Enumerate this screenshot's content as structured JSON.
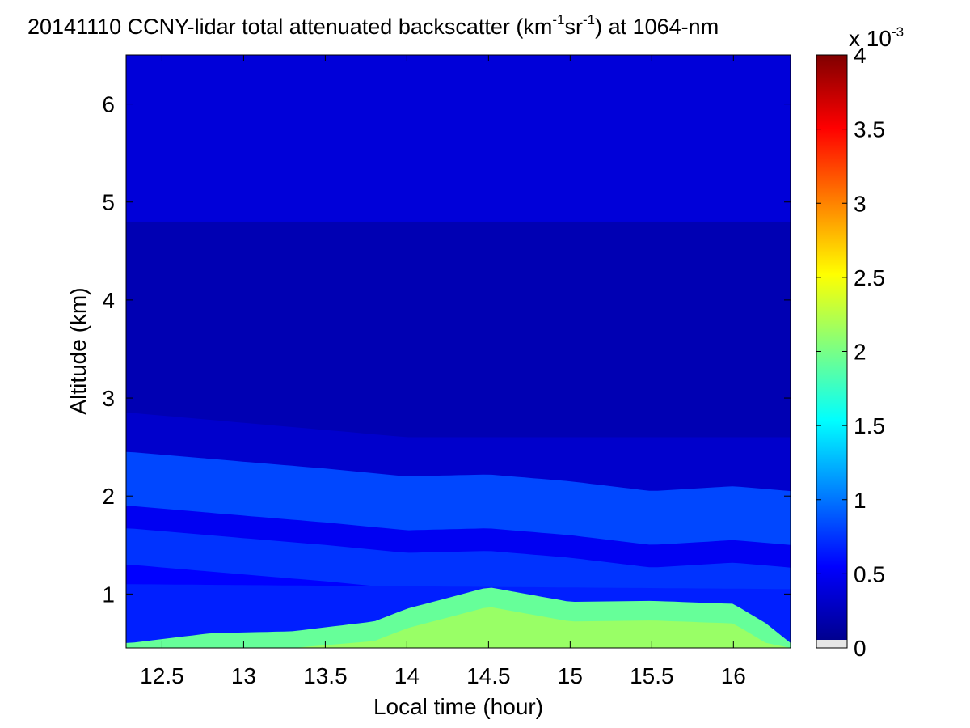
{
  "chart_data": {
    "type": "heatmap",
    "title": "20141110 CCNY-lidar total attenuated backscatter (km",
    "title_sup1": "-1",
    "title_mid": "sr",
    "title_sup2": "-1",
    "title_end": ") at 1064-nm",
    "xlabel": "Local time (hour)",
    "ylabel": "Altitude (km)",
    "xlim": [
      12.28,
      16.35
    ],
    "ylim": [
      0.45,
      6.5
    ],
    "x_ticks": [
      12.5,
      13,
      13.5,
      14,
      14.5,
      15,
      15.5,
      16
    ],
    "x_tick_labels": [
      "12.5",
      "13",
      "13.5",
      "14",
      "14.5",
      "15",
      "15.5",
      "16"
    ],
    "y_ticks": [
      1,
      2,
      3,
      4,
      5,
      6
    ],
    "y_tick_labels": [
      "1",
      "2",
      "3",
      "4",
      "5",
      "6"
    ],
    "colorbar": {
      "colormap": "jet",
      "clim": [
        0,
        4
      ],
      "ticks": [
        0,
        0.5,
        1,
        1.5,
        2,
        2.5,
        3,
        3.5,
        4
      ],
      "tick_labels": [
        "0",
        "0.5",
        "1",
        "1.5",
        "2",
        "2.5",
        "3",
        "3.5",
        "4"
      ],
      "multiplier_base": "x 10",
      "multiplier_exp": "-3",
      "no_data_color": "#e6e6e6"
    },
    "features": {
      "background_upper": 0.35,
      "free_troposphere": 0.2,
      "aerosol_layer_top": [
        [
          12.3,
          2.45
        ],
        [
          13.0,
          2.35
        ],
        [
          13.5,
          2.28
        ],
        [
          14.0,
          2.2
        ],
        [
          14.5,
          2.22
        ],
        [
          15.0,
          2.15
        ],
        [
          15.5,
          2.05
        ],
        [
          16.0,
          2.1
        ],
        [
          16.35,
          2.05
        ]
      ],
      "aerosol_layer_value": 0.78,
      "upper_haze_top": [
        [
          12.3,
          2.85
        ],
        [
          14.0,
          2.6
        ],
        [
          16.35,
          2.6
        ]
      ],
      "mixed_layer_top": [
        [
          12.3,
          0.5
        ],
        [
          12.8,
          0.6
        ],
        [
          13.3,
          0.62
        ],
        [
          13.8,
          0.72
        ],
        [
          14.0,
          0.85
        ],
        [
          14.5,
          1.07
        ],
        [
          15.0,
          0.92
        ],
        [
          15.5,
          0.93
        ],
        [
          16.0,
          0.9
        ],
        [
          16.2,
          0.7
        ],
        [
          16.35,
          0.5
        ]
      ],
      "mixed_layer_value": 1.9
    },
    "grid": false
  }
}
